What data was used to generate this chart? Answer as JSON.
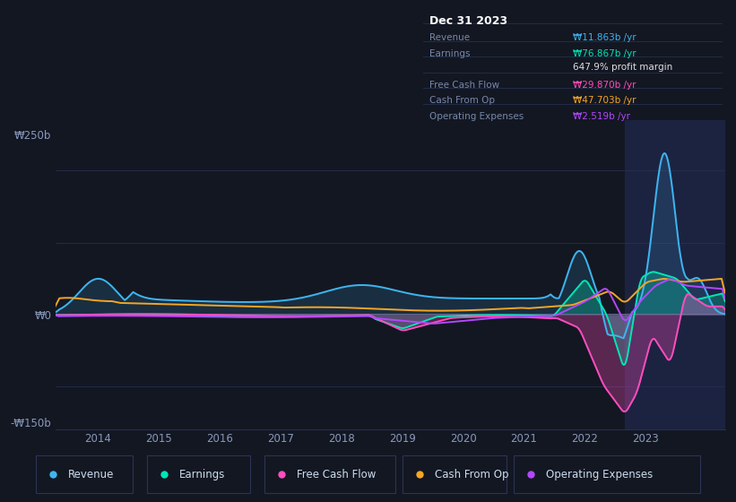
{
  "bg_color": "#131722",
  "plot_bg_color": "#131722",
  "title": "Dec 31 2023",
  "info_rows": [
    {
      "label": "Revenue",
      "value": "₩11.863b /yr",
      "color": "#3eb4f0"
    },
    {
      "label": "Earnings",
      "value": "₩76.867b /yr",
      "color": "#00e5b4"
    },
    {
      "label": "",
      "value": "647.9% profit margin",
      "color": "#e0e0e0"
    },
    {
      "label": "Free Cash Flow",
      "value": "₩29.870b /yr",
      "color": "#ff4dbf"
    },
    {
      "label": "Cash From Op",
      "value": "₩47.703b /yr",
      "color": "#f5a623"
    },
    {
      "label": "Operating Expenses",
      "value": "₩2.519b /yr",
      "color": "#b347ff"
    }
  ],
  "ylim": [
    -160,
    270
  ],
  "ytick_vals": [
    -150,
    0,
    250
  ],
  "ytick_labels": [
    "-₩150b",
    "₩0",
    "₩250b"
  ],
  "xlim_start": 2013.3,
  "xlim_end": 2024.3,
  "xtick_years": [
    2014,
    2015,
    2016,
    2017,
    2018,
    2019,
    2020,
    2021,
    2022,
    2023
  ],
  "legend_items": [
    {
      "label": "Revenue",
      "color": "#3eb4f0"
    },
    {
      "label": "Earnings",
      "color": "#00e5b4"
    },
    {
      "label": "Free Cash Flow",
      "color": "#ff4dbf"
    },
    {
      "label": "Cash From Op",
      "color": "#f5a623"
    },
    {
      "label": "Operating Expenses",
      "color": "#b347ff"
    }
  ],
  "highlight_x_start": 2022.65,
  "highlight_x_end": 2024.3,
  "highlight_color": "#1c2340",
  "revenue_color": "#3eb4f0",
  "earnings_color": "#00e5b4",
  "fcf_color": "#ff4dbf",
  "cashop_color": "#f5a623",
  "opex_color": "#b347ff"
}
